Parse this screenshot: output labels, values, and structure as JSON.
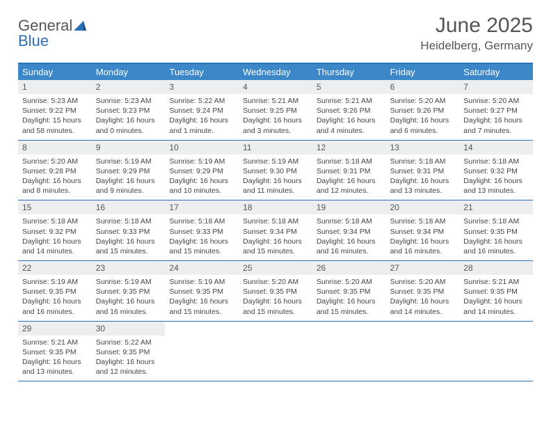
{
  "logo": {
    "line1": "General",
    "line2": "Blue"
  },
  "title": "June 2025",
  "location": "Heidelberg, Germany",
  "colors": {
    "header_bg": "#3b87c8",
    "border": "#2a70b8",
    "daynum_bg": "#eceef0",
    "text": "#444",
    "title_text": "#555"
  },
  "fonts": {
    "title_size": 30,
    "location_size": 17,
    "header_size": 13,
    "body_size": 10.5
  },
  "day_names": [
    "Sunday",
    "Monday",
    "Tuesday",
    "Wednesday",
    "Thursday",
    "Friday",
    "Saturday"
  ],
  "weeks": [
    [
      {
        "n": "1",
        "sr": "Sunrise: 5:23 AM",
        "ss": "Sunset: 9:22 PM",
        "dl": "Daylight: 15 hours and 58 minutes."
      },
      {
        "n": "2",
        "sr": "Sunrise: 5:23 AM",
        "ss": "Sunset: 9:23 PM",
        "dl": "Daylight: 16 hours and 0 minutes."
      },
      {
        "n": "3",
        "sr": "Sunrise: 5:22 AM",
        "ss": "Sunset: 9:24 PM",
        "dl": "Daylight: 16 hours and 1 minute."
      },
      {
        "n": "4",
        "sr": "Sunrise: 5:21 AM",
        "ss": "Sunset: 9:25 PM",
        "dl": "Daylight: 16 hours and 3 minutes."
      },
      {
        "n": "5",
        "sr": "Sunrise: 5:21 AM",
        "ss": "Sunset: 9:26 PM",
        "dl": "Daylight: 16 hours and 4 minutes."
      },
      {
        "n": "6",
        "sr": "Sunrise: 5:20 AM",
        "ss": "Sunset: 9:26 PM",
        "dl": "Daylight: 16 hours and 6 minutes."
      },
      {
        "n": "7",
        "sr": "Sunrise: 5:20 AM",
        "ss": "Sunset: 9:27 PM",
        "dl": "Daylight: 16 hours and 7 minutes."
      }
    ],
    [
      {
        "n": "8",
        "sr": "Sunrise: 5:20 AM",
        "ss": "Sunset: 9:28 PM",
        "dl": "Daylight: 16 hours and 8 minutes."
      },
      {
        "n": "9",
        "sr": "Sunrise: 5:19 AM",
        "ss": "Sunset: 9:29 PM",
        "dl": "Daylight: 16 hours and 9 minutes."
      },
      {
        "n": "10",
        "sr": "Sunrise: 5:19 AM",
        "ss": "Sunset: 9:29 PM",
        "dl": "Daylight: 16 hours and 10 minutes."
      },
      {
        "n": "11",
        "sr": "Sunrise: 5:19 AM",
        "ss": "Sunset: 9:30 PM",
        "dl": "Daylight: 16 hours and 11 minutes."
      },
      {
        "n": "12",
        "sr": "Sunrise: 5:18 AM",
        "ss": "Sunset: 9:31 PM",
        "dl": "Daylight: 16 hours and 12 minutes."
      },
      {
        "n": "13",
        "sr": "Sunrise: 5:18 AM",
        "ss": "Sunset: 9:31 PM",
        "dl": "Daylight: 16 hours and 13 minutes."
      },
      {
        "n": "14",
        "sr": "Sunrise: 5:18 AM",
        "ss": "Sunset: 9:32 PM",
        "dl": "Daylight: 16 hours and 13 minutes."
      }
    ],
    [
      {
        "n": "15",
        "sr": "Sunrise: 5:18 AM",
        "ss": "Sunset: 9:32 PM",
        "dl": "Daylight: 16 hours and 14 minutes."
      },
      {
        "n": "16",
        "sr": "Sunrise: 5:18 AM",
        "ss": "Sunset: 9:33 PM",
        "dl": "Daylight: 16 hours and 15 minutes."
      },
      {
        "n": "17",
        "sr": "Sunrise: 5:18 AM",
        "ss": "Sunset: 9:33 PM",
        "dl": "Daylight: 16 hours and 15 minutes."
      },
      {
        "n": "18",
        "sr": "Sunrise: 5:18 AM",
        "ss": "Sunset: 9:34 PM",
        "dl": "Daylight: 16 hours and 15 minutes."
      },
      {
        "n": "19",
        "sr": "Sunrise: 5:18 AM",
        "ss": "Sunset: 9:34 PM",
        "dl": "Daylight: 16 hours and 16 minutes."
      },
      {
        "n": "20",
        "sr": "Sunrise: 5:18 AM",
        "ss": "Sunset: 9:34 PM",
        "dl": "Daylight: 16 hours and 16 minutes."
      },
      {
        "n": "21",
        "sr": "Sunrise: 5:18 AM",
        "ss": "Sunset: 9:35 PM",
        "dl": "Daylight: 16 hours and 16 minutes."
      }
    ],
    [
      {
        "n": "22",
        "sr": "Sunrise: 5:19 AM",
        "ss": "Sunset: 9:35 PM",
        "dl": "Daylight: 16 hours and 16 minutes."
      },
      {
        "n": "23",
        "sr": "Sunrise: 5:19 AM",
        "ss": "Sunset: 9:35 PM",
        "dl": "Daylight: 16 hours and 16 minutes."
      },
      {
        "n": "24",
        "sr": "Sunrise: 5:19 AM",
        "ss": "Sunset: 9:35 PM",
        "dl": "Daylight: 16 hours and 15 minutes."
      },
      {
        "n": "25",
        "sr": "Sunrise: 5:20 AM",
        "ss": "Sunset: 9:35 PM",
        "dl": "Daylight: 16 hours and 15 minutes."
      },
      {
        "n": "26",
        "sr": "Sunrise: 5:20 AM",
        "ss": "Sunset: 9:35 PM",
        "dl": "Daylight: 16 hours and 15 minutes."
      },
      {
        "n": "27",
        "sr": "Sunrise: 5:20 AM",
        "ss": "Sunset: 9:35 PM",
        "dl": "Daylight: 16 hours and 14 minutes."
      },
      {
        "n": "28",
        "sr": "Sunrise: 5:21 AM",
        "ss": "Sunset: 9:35 PM",
        "dl": "Daylight: 16 hours and 14 minutes."
      }
    ],
    [
      {
        "n": "29",
        "sr": "Sunrise: 5:21 AM",
        "ss": "Sunset: 9:35 PM",
        "dl": "Daylight: 16 hours and 13 minutes."
      },
      {
        "n": "30",
        "sr": "Sunrise: 5:22 AM",
        "ss": "Sunset: 9:35 PM",
        "dl": "Daylight: 16 hours and 12 minutes."
      },
      null,
      null,
      null,
      null,
      null
    ]
  ]
}
